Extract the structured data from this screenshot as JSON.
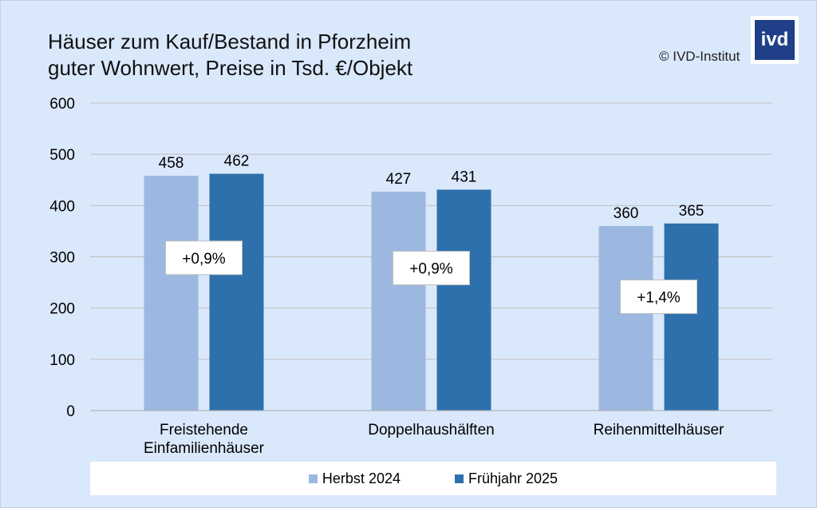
{
  "title_line1": "Häuser zum Kauf/Bestand in Pforzheim",
  "title_line2": "guter Wohnwert, Preise in Tsd. €/Objekt",
  "copyright": "© IVD-Institut",
  "logo_text": "ivd",
  "colors": {
    "series1": "#9db8e0",
    "series2": "#2e70ac",
    "background": "#d9e8fb",
    "grid": "#bfbfbf",
    "logo": "#1f3f88"
  },
  "chart_data": {
    "type": "bar",
    "categories": [
      [
        "Freistehende",
        "Einfamilienhäuser"
      ],
      [
        "Doppelhaushälften"
      ],
      [
        "Reihenmittelhäuser"
      ]
    ],
    "series": [
      {
        "name": "Herbst 2024",
        "values": [
          458,
          427,
          360
        ]
      },
      {
        "name": "Frühjahr 2025",
        "values": [
          462,
          431,
          365
        ]
      }
    ],
    "annotations": [
      "+0,9%",
      "+0,9%",
      "+1,4%"
    ],
    "annotation_levels": [
      298,
      278,
      222
    ],
    "yticks": [
      0,
      100,
      200,
      300,
      400,
      500,
      600
    ],
    "ylim": [
      0,
      600
    ],
    "grid": true,
    "legend_position": "bottom"
  }
}
